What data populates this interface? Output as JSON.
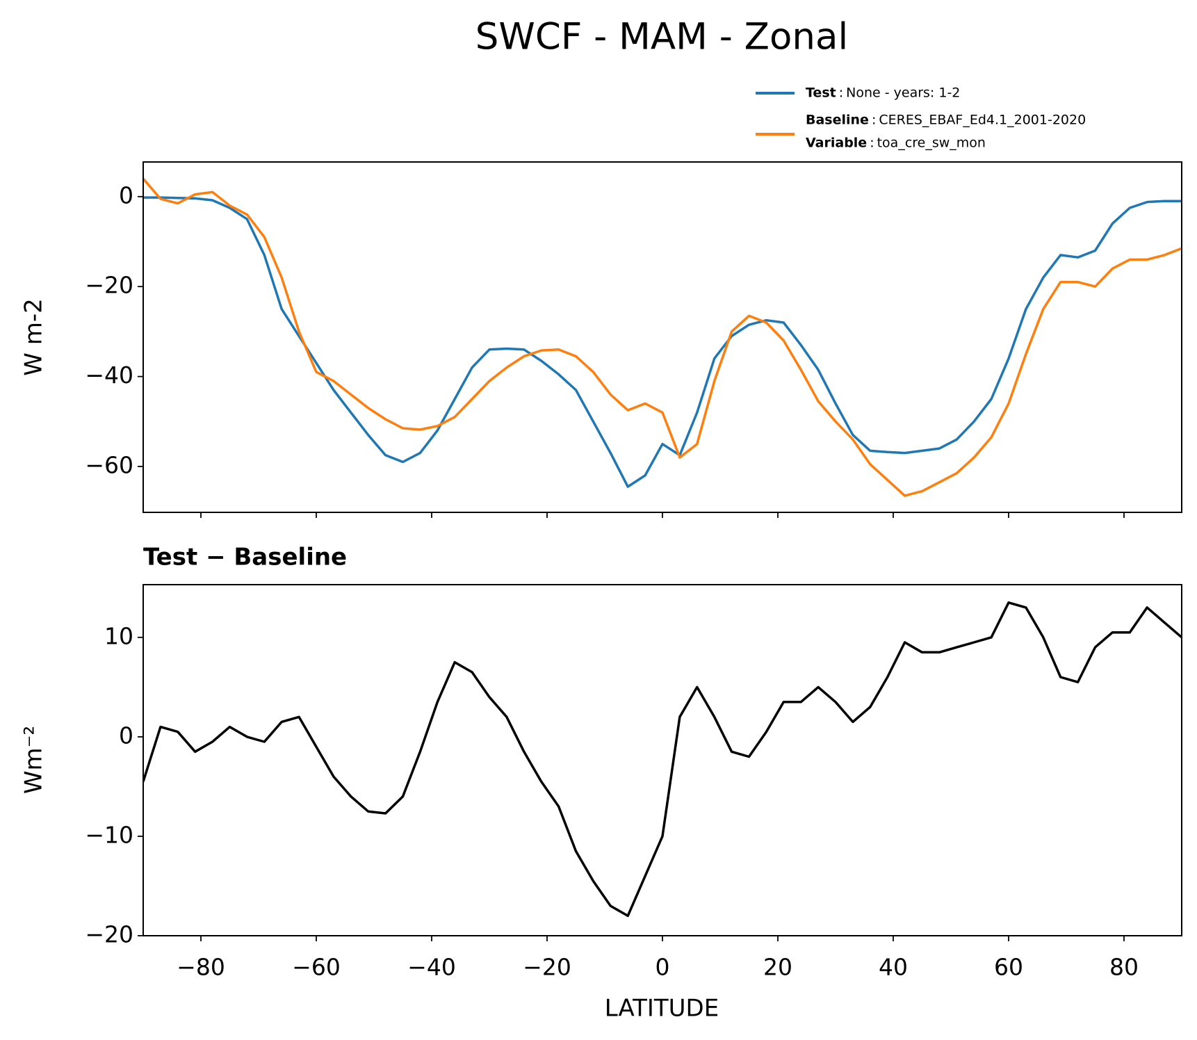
{
  "chart_data": [
    {
      "type": "line",
      "title": "SWCF - MAM - Zonal",
      "ylabel": "W m-2",
      "x": [
        -90,
        -87,
        -84,
        -81,
        -78,
        -75,
        -72,
        -69,
        -66,
        -63,
        -60,
        -57,
        -54,
        -51,
        -48,
        -45,
        -42,
        -39,
        -36,
        -33,
        -30,
        -27,
        -24,
        -21,
        -18,
        -15,
        -12,
        -9,
        -6,
        -3,
        0,
        3,
        6,
        9,
        12,
        15,
        18,
        21,
        24,
        27,
        30,
        33,
        36,
        39,
        42,
        45,
        48,
        51,
        54,
        57,
        60,
        63,
        66,
        69,
        72,
        75,
        78,
        81,
        84,
        87,
        90
      ],
      "series": [
        {
          "name": "Test",
          "description": "None - years: 1-2",
          "color": "#1f77b4",
          "values": [
            -0.2,
            -0.2,
            -0.3,
            -0.4,
            -0.8,
            -2.5,
            -5,
            -13,
            -25,
            -31,
            -37,
            -43,
            -48,
            -53,
            -57.5,
            -59,
            -57,
            -52,
            -45,
            -38,
            -34,
            -33.8,
            -34,
            -36.5,
            -39.5,
            -43,
            -50,
            -57,
            -64.5,
            -62,
            -55,
            -57.5,
            -48,
            -36,
            -31,
            -28.5,
            -27.5,
            -28,
            -33,
            -38.5,
            -46,
            -53,
            -56.5,
            -56.8,
            -57,
            -56.5,
            -56,
            -54,
            -50,
            -45,
            -36,
            -25,
            -18,
            -13,
            -13.5,
            -12,
            -6,
            -2.5,
            -1.2,
            -1,
            -1
          ]
        },
        {
          "name": "Baseline",
          "description": "CERES_EBAF_Ed4.1_2001-2020",
          "variable_label": "Variable",
          "variable": "toa_cre_sw_mon",
          "color": "#ff7f0e",
          "values": [
            4,
            -0.5,
            -1.5,
            0.5,
            1,
            -2,
            -4,
            -9,
            -18,
            -30,
            -39,
            -41,
            -44,
            -47,
            -49.5,
            -51.5,
            -51.8,
            -51,
            -49,
            -45,
            -41,
            -38,
            -35.5,
            -34.2,
            -34,
            -35.5,
            -39,
            -44,
            -47.5,
            -46,
            -48,
            -58,
            -55,
            -41,
            -30,
            -26.5,
            -28,
            -32,
            -38.5,
            -45.5,
            -50,
            -54,
            -59.5,
            -63,
            -66.5,
            -65.5,
            -63.5,
            -61.5,
            -58,
            -53.5,
            -46,
            -35,
            -25,
            -19,
            -19,
            -20,
            -16,
            -14,
            -14,
            -13,
            -11.5
          ]
        }
      ],
      "legend_separator": ":",
      "xlim": [
        -90,
        90
      ],
      "xticks": [
        -80,
        -60,
        -40,
        -20,
        0,
        20,
        40,
        60,
        80
      ],
      "show_xtick_labels": false,
      "ylim": [
        -70.2,
        7.7
      ],
      "yticks": [
        0,
        {
          "value": -20,
          "label": "−20"
        },
        {
          "value": -40,
          "label": "−40"
        },
        {
          "value": -60,
          "label": "−60"
        }
      ]
    },
    {
      "type": "line",
      "title": "Test − Baseline",
      "xlabel": "LATITUDE",
      "ylabel": "Wm⁻²",
      "color": "#000000",
      "x": [
        -90,
        -87,
        -84,
        -81,
        -78,
        -75,
        -72,
        -69,
        -66,
        -63,
        -60,
        -57,
        -54,
        -51,
        -48,
        -45,
        -42,
        -39,
        -36,
        -33,
        -30,
        -27,
        -24,
        -21,
        -18,
        -15,
        -12,
        -9,
        -6,
        -3,
        0,
        3,
        6,
        9,
        12,
        15,
        18,
        21,
        24,
        27,
        30,
        33,
        36,
        39,
        42,
        45,
        48,
        51,
        54,
        57,
        60,
        63,
        66,
        69,
        72,
        75,
        78,
        81,
        84,
        87,
        90
      ],
      "values": [
        -4.5,
        1,
        0.5,
        -1.5,
        -0.5,
        1,
        0,
        -0.5,
        1.5,
        2,
        -1,
        -4,
        -6,
        -7.5,
        -7.7,
        -6,
        -1.5,
        3.5,
        7.5,
        6.5,
        4,
        2,
        -1.5,
        -4.5,
        -7,
        -11.5,
        -14.5,
        -17,
        -18,
        -14,
        -10,
        2,
        5,
        2,
        -1.5,
        -2,
        0.5,
        3.5,
        3.5,
        5,
        3.5,
        1.5,
        3,
        6,
        9.5,
        8.5,
        8.5,
        9,
        9.5,
        10,
        13.5,
        13,
        10,
        6,
        5.5,
        9,
        10.5,
        10.5,
        13,
        11.5,
        10
      ],
      "xlim": [
        -90,
        90
      ],
      "xticks": [
        {
          "value": -80,
          "label": "−80"
        },
        {
          "value": -60,
          "label": "−60"
        },
        {
          "value": -40,
          "label": "−40"
        },
        {
          "value": -20,
          "label": "−20"
        },
        0,
        20,
        40,
        60,
        80
      ],
      "show_xtick_labels": true,
      "ylim": [
        -20,
        15.3
      ],
      "yticks": [
        {
          "value": -20,
          "label": "−20"
        },
        {
          "value": -10,
          "label": "−10"
        },
        0,
        10
      ]
    }
  ]
}
